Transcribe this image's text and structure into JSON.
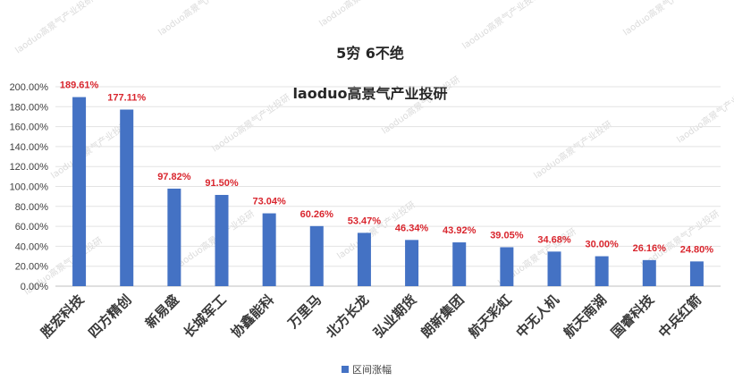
{
  "chart_data": {
    "type": "bar",
    "title": "5穷 6不绝",
    "subtitle": "laoduo高景气产业投研",
    "categories": [
      "胜宏科技",
      "四方精创",
      "新易盛",
      "长城军工",
      "协鑫能科",
      "万里马",
      "北方长龙",
      "弘业期货",
      "朗新集团",
      "航天彩虹",
      "中无人机",
      "航天南湖",
      "国睿科技",
      "中兵红箭"
    ],
    "series": [
      {
        "name": "区间涨幅",
        "values": [
          189.61,
          177.11,
          97.82,
          91.5,
          73.04,
          60.26,
          53.47,
          46.34,
          43.92,
          39.05,
          34.68,
          30.0,
          26.16,
          24.8
        ]
      }
    ],
    "data_labels": [
      "189.61%",
      "177.11%",
      "97.82%",
      "91.50%",
      "73.04%",
      "60.26%",
      "53.47%",
      "46.34%",
      "43.92%",
      "39.05%",
      "34.68%",
      "30.00%",
      "26.16%",
      "24.80%"
    ],
    "y_ticks": [
      "0.00%",
      "20.00%",
      "40.00%",
      "60.00%",
      "80.00%",
      "100.00%",
      "120.00%",
      "140.00%",
      "160.00%",
      "180.00%",
      "200.00%"
    ],
    "ylim": [
      0,
      200
    ],
    "grid": true,
    "legend": "bottom",
    "bar_color": "#4472c4",
    "label_color": "#d9262e",
    "watermark": "laoduo高景气产业投研"
  }
}
